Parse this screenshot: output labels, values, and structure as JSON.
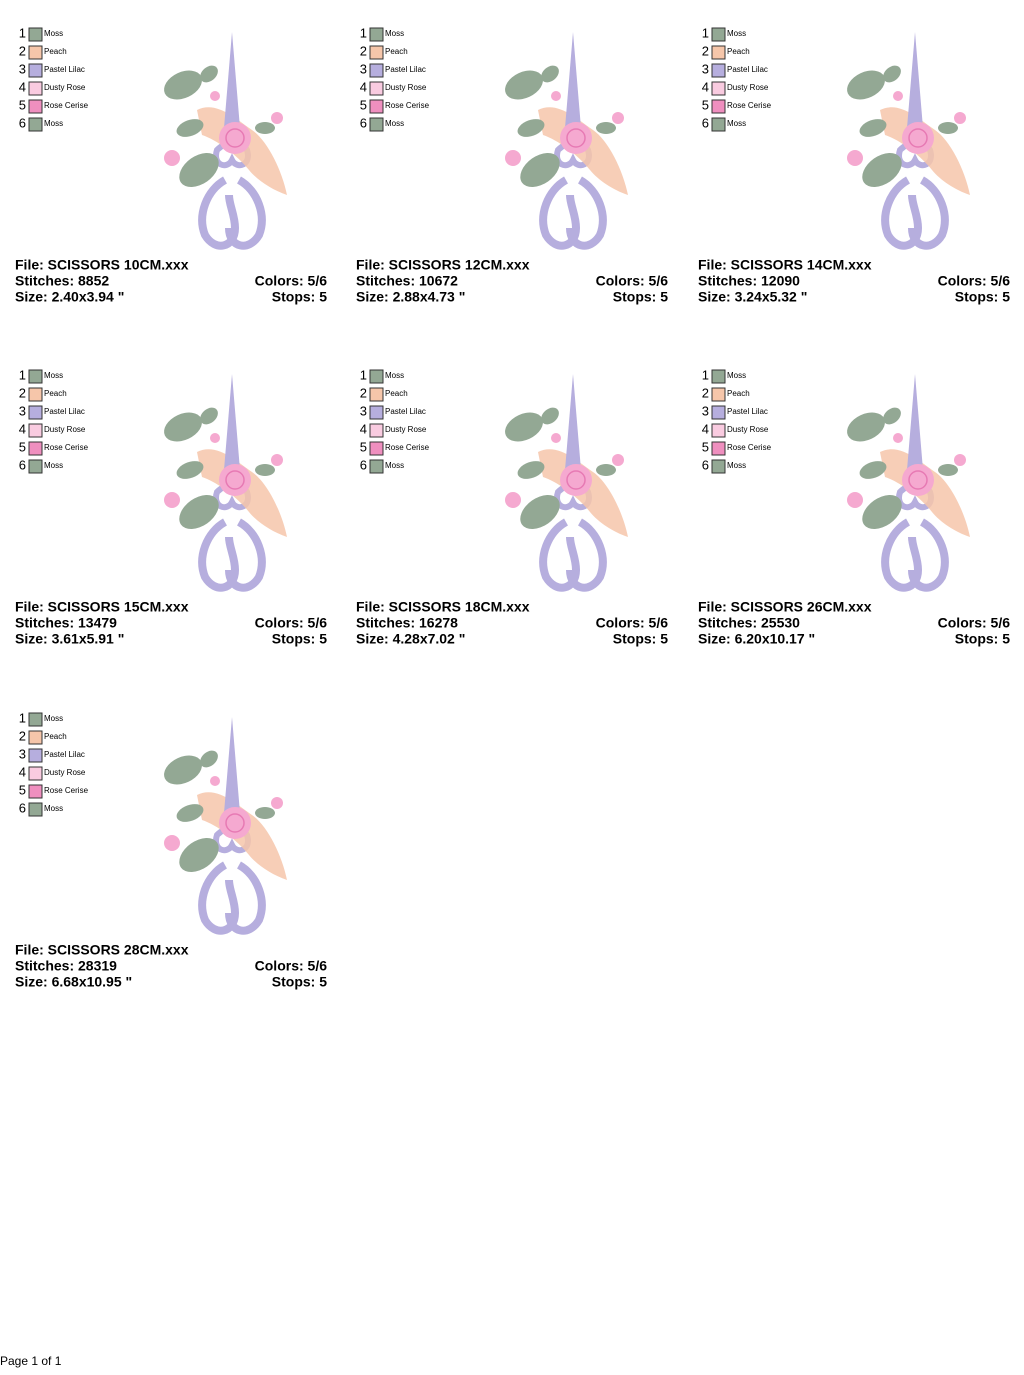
{
  "designs": [
    {
      "colors": [
        {
          "number": 1,
          "name": "Moss",
          "color": "#93a894"
        },
        {
          "number": 2,
          "name": "Peach",
          "color": "#f6c6aa"
        },
        {
          "number": 3,
          "name": "Pastel Lilac",
          "color": "#b6aede"
        },
        {
          "number": 4,
          "name": "Dusty Rose",
          "color": "#f9cbe0"
        },
        {
          "number": 5,
          "name": "Rose Cerise",
          "color": "#ef8fbf"
        },
        {
          "number": 6,
          "name": "Moss",
          "color": "#93a894"
        }
      ],
      "file": "File: SCISSORS 10CM.xxx",
      "stitches": "Stitches: 8852",
      "size": "Size: 2.40x3.94 \"",
      "colors_count": "Colors: 5/6",
      "stops": "Stops: 5"
    },
    {
      "colors": [
        {
          "number": 1,
          "name": "Moss",
          "color": "#93a894"
        },
        {
          "number": 2,
          "name": "Peach",
          "color": "#f6c6aa"
        },
        {
          "number": 3,
          "name": "Pastel Lilac",
          "color": "#b6aede"
        },
        {
          "number": 4,
          "name": "Dusty Rose",
          "color": "#f9cbe0"
        },
        {
          "number": 5,
          "name": "Rose Cerise",
          "color": "#ef8fbf"
        },
        {
          "number": 6,
          "name": "Moss",
          "color": "#93a894"
        }
      ],
      "file": "File: SCISSORS 12CM.xxx",
      "stitches": "Stitches: 10672",
      "size": "Size: 2.88x4.73 \"",
      "colors_count": "Colors: 5/6",
      "stops": "Stops: 5"
    },
    {
      "colors": [
        {
          "number": 1,
          "name": "Moss",
          "color": "#93a894"
        },
        {
          "number": 2,
          "name": "Peach",
          "color": "#f6c6aa"
        },
        {
          "number": 3,
          "name": "Pastel Lilac",
          "color": "#b6aede"
        },
        {
          "number": 4,
          "name": "Dusty Rose",
          "color": "#f9cbe0"
        },
        {
          "number": 5,
          "name": "Rose Cerise",
          "color": "#ef8fbf"
        },
        {
          "number": 6,
          "name": "Moss",
          "color": "#93a894"
        }
      ],
      "file": "File: SCISSORS 14CM.xxx",
      "stitches": "Stitches: 12090",
      "size": "Size: 3.24x5.32 \"",
      "colors_count": "Colors: 5/6",
      "stops": "Stops: 5"
    },
    {
      "colors": [
        {
          "number": 1,
          "name": "Moss",
          "color": "#93a894"
        },
        {
          "number": 2,
          "name": "Peach",
          "color": "#f6c6aa"
        },
        {
          "number": 3,
          "name": "Pastel Lilac",
          "color": "#b6aede"
        },
        {
          "number": 4,
          "name": "Dusty Rose",
          "color": "#f9cbe0"
        },
        {
          "number": 5,
          "name": "Rose Cerise",
          "color": "#ef8fbf"
        },
        {
          "number": 6,
          "name": "Moss",
          "color": "#93a894"
        }
      ],
      "file": "File: SCISSORS 15CM.xxx",
      "stitches": "Stitches: 13479",
      "size": "Size: 3.61x5.91 \"",
      "colors_count": "Colors: 5/6",
      "stops": "Stops: 5"
    },
    {
      "colors": [
        {
          "number": 1,
          "name": "Moss",
          "color": "#93a894"
        },
        {
          "number": 2,
          "name": "Peach",
          "color": "#f6c6aa"
        },
        {
          "number": 3,
          "name": "Pastel Lilac",
          "color": "#b6aede"
        },
        {
          "number": 4,
          "name": "Dusty Rose",
          "color": "#f9cbe0"
        },
        {
          "number": 5,
          "name": "Rose Cerise",
          "color": "#ef8fbf"
        },
        {
          "number": 6,
          "name": "Moss",
          "color": "#93a894"
        }
      ],
      "file": "File: SCISSORS 18CM.xxx",
      "stitches": "Stitches: 16278",
      "size": "Size: 4.28x7.02 \"",
      "colors_count": "Colors: 5/6",
      "stops": "Stops: 5"
    },
    {
      "colors": [
        {
          "number": 1,
          "name": "Moss",
          "color": "#93a894"
        },
        {
          "number": 2,
          "name": "Peach",
          "color": "#f6c6aa"
        },
        {
          "number": 3,
          "name": "Pastel Lilac",
          "color": "#b6aede"
        },
        {
          "number": 4,
          "name": "Dusty Rose",
          "color": "#f9cbe0"
        },
        {
          "number": 5,
          "name": "Rose Cerise",
          "color": "#ef8fbf"
        },
        {
          "number": 6,
          "name": "Moss",
          "color": "#93a894"
        }
      ],
      "file": "File: SCISSORS 26CM.xxx",
      "stitches": "Stitches: 25530",
      "size": "Size: 6.20x10.17 \"",
      "colors_count": "Colors: 5/6",
      "stops": "Stops: 5"
    },
    {
      "colors": [
        {
          "number": 1,
          "name": "Moss",
          "color": "#93a894"
        },
        {
          "number": 2,
          "name": "Peach",
          "color": "#f6c6aa"
        },
        {
          "number": 3,
          "name": "Pastel Lilac",
          "color": "#b6aede"
        },
        {
          "number": 4,
          "name": "Dusty Rose",
          "color": "#f9cbe0"
        },
        {
          "number": 5,
          "name": "Rose Cerise",
          "color": "#ef8fbf"
        },
        {
          "number": 6,
          "name": "Moss",
          "color": "#93a894"
        }
      ],
      "file": "File: SCISSORS 28CM.xxx",
      "stitches": "Stitches: 28319",
      "size": "Size: 6.68x10.95 \"",
      "colors_count": "Colors: 5/6",
      "stops": "Stops: 5"
    }
  ],
  "footer": "Page 1 of 1"
}
